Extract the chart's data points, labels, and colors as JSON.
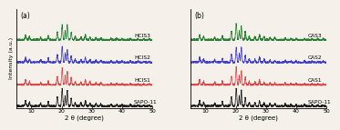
{
  "panel_a_label": "(a)",
  "panel_b_label": "(b)",
  "xlabel": "2 θ (degree)",
  "ylabel": "Intensity (a.u.)",
  "xlim": [
    5,
    50
  ],
  "xticks": [
    10,
    20,
    30,
    40,
    50
  ],
  "panel_a_labels": [
    "SAPO-11",
    "HCIS1",
    "HCIS2",
    "HCIS3"
  ],
  "panel_b_labels": [
    "SAPO-11",
    "CAS1",
    "CAS2",
    "CAS3"
  ],
  "colors": [
    "#111111",
    "#d94040",
    "#3333cc",
    "#1a7a2a"
  ],
  "offsets": [
    0,
    0.85,
    1.75,
    2.65
  ],
  "background_color": "#f5f0ea"
}
